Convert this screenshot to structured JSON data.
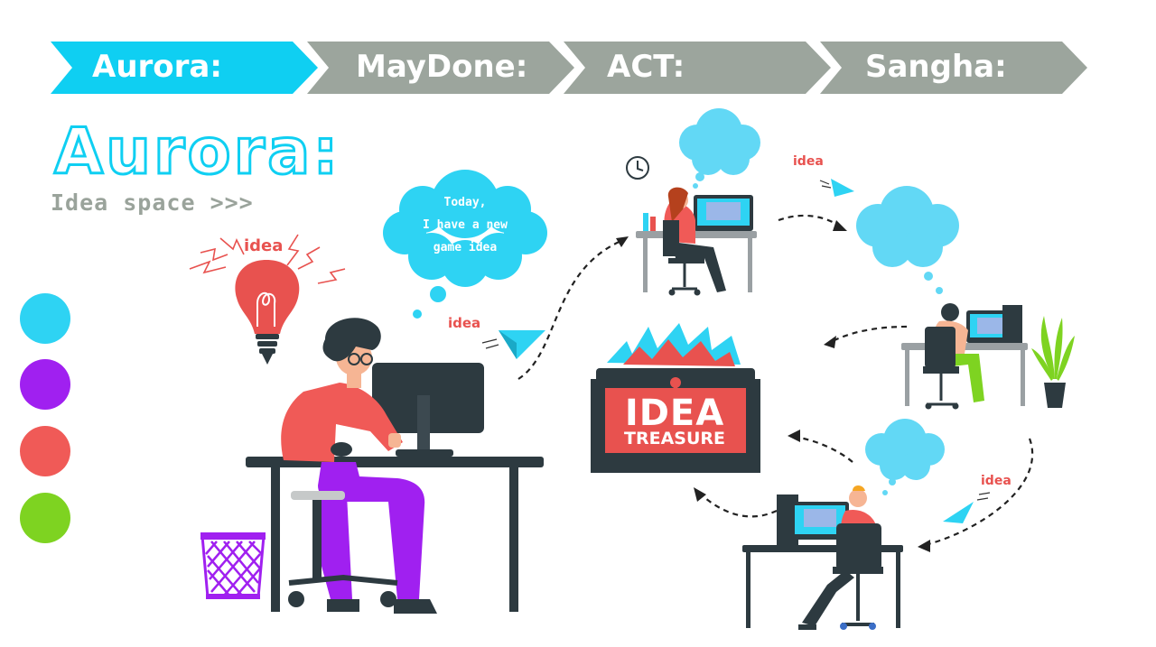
{
  "nav": {
    "steps": [
      {
        "label": "Aurora:",
        "state": "active"
      },
      {
        "label": "MayDone:",
        "state": "inactive"
      },
      {
        "label": "ACT:",
        "state": "inactive"
      },
      {
        "label": "Sangha:",
        "state": "inactive"
      }
    ]
  },
  "hero": {
    "title": "Aurora:",
    "subtitle": "Idea space >>>"
  },
  "legend_dots": [
    "#2ed3f3",
    "#a020f0",
    "#f05a57",
    "#7ed321"
  ],
  "scene": {
    "bulb_label": "idea",
    "speech_lines": [
      "Today,",
      "I have a new",
      "game idea"
    ],
    "idea_labels": [
      "idea",
      "idea",
      "idea"
    ],
    "chest_title": "IDEA",
    "chest_subtitle": "TREASURE"
  },
  "colors": {
    "accent": "#0fcff2",
    "inactive": "#9ca59d",
    "cloud": "#5ad6f5",
    "red": "#e8524f",
    "purple": "#a020f0",
    "green": "#7ed321",
    "dark": "#2d3a40"
  }
}
